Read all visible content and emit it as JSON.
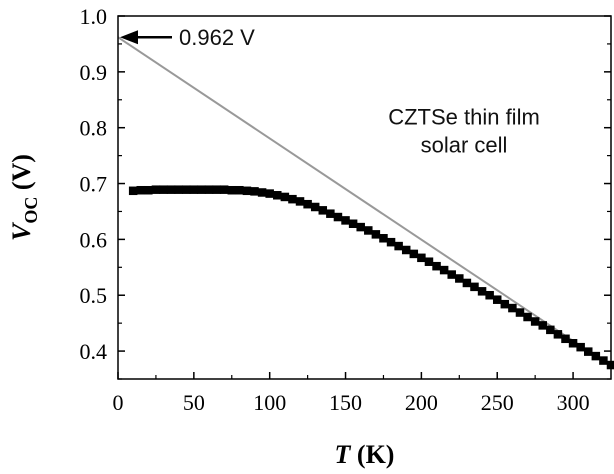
{
  "chart_data": {
    "type": "scatter",
    "xlabel": {
      "italic": "T",
      "rest": " (K)"
    },
    "ylabel": {
      "italic": "V",
      "subscript": "OC",
      "rest": " (V)"
    },
    "xlim": [
      0,
      325
    ],
    "ylim": [
      0.35,
      1.0
    ],
    "x_ticks": [
      0,
      50,
      100,
      150,
      200,
      250,
      300
    ],
    "y_ticks": [
      0.4,
      0.5,
      0.6,
      0.7,
      0.8,
      0.9,
      1.0
    ],
    "x_tick_labels": [
      "0",
      "50",
      "100",
      "150",
      "200",
      "250",
      "300"
    ],
    "y_tick_labels": [
      "0.4",
      "0.5",
      "0.6",
      "0.7",
      "0.8",
      "0.9",
      "1.0"
    ],
    "grid": false,
    "annotations": {
      "intercept_label": "0.962 V",
      "sample_line1": "CZTSe thin film",
      "sample_line2": "solar cell"
    },
    "series": [
      {
        "marker": "square",
        "color": "#000000",
        "x": [
          10,
          15,
          20,
          25,
          30,
          35,
          40,
          45,
          50,
          55,
          60,
          65,
          70,
          75,
          80,
          85,
          90,
          95,
          100,
          105,
          110,
          115,
          120,
          125,
          130,
          135,
          140,
          145,
          150,
          155,
          160,
          165,
          170,
          175,
          180,
          185,
          190,
          195,
          200,
          205,
          210,
          215,
          220,
          225,
          230,
          235,
          240,
          245,
          250,
          255,
          260,
          265,
          270,
          275,
          280,
          285,
          290,
          295,
          300,
          305,
          310,
          315,
          320,
          325
        ],
        "y": [
          0.687,
          0.688,
          0.688,
          0.689,
          0.689,
          0.689,
          0.689,
          0.689,
          0.689,
          0.689,
          0.689,
          0.689,
          0.689,
          0.688,
          0.688,
          0.687,
          0.686,
          0.684,
          0.682,
          0.679,
          0.676,
          0.672,
          0.668,
          0.663,
          0.658,
          0.652,
          0.646,
          0.64,
          0.634,
          0.628,
          0.622,
          0.616,
          0.609,
          0.602,
          0.595,
          0.588,
          0.581,
          0.574,
          0.567,
          0.56,
          0.552,
          0.545,
          0.537,
          0.53,
          0.522,
          0.515,
          0.507,
          0.5,
          0.492,
          0.484,
          0.477,
          0.469,
          0.461,
          0.453,
          0.446,
          0.438,
          0.43,
          0.422,
          0.414,
          0.407,
          0.399,
          0.391,
          0.383,
          0.375
        ]
      }
    ],
    "fit_line": {
      "color": "#999999",
      "y_intercept": 0.962,
      "x0": 0,
      "x1": 325,
      "y1": 0.373
    }
  }
}
